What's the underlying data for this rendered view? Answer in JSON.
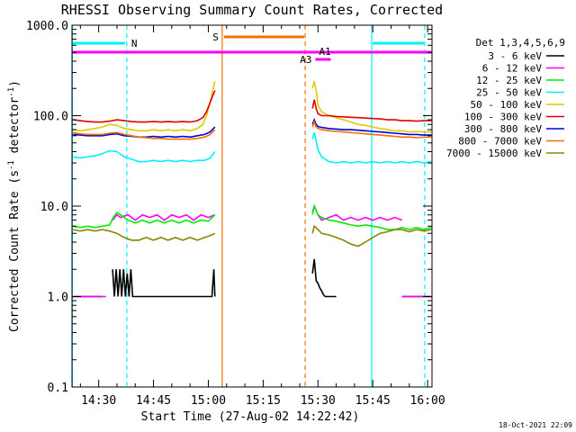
{
  "title": "RHESSI Observing Summary Count Rates, Corrected",
  "footer_date": "18-Oct-2021 22:09",
  "chart_data": {
    "type": "line",
    "title": "RHESSI Observing Summary Count Rates, Corrected",
    "xlabel": "Start Time (27-Aug-02 14:22:42)",
    "ylabel_main": "Corrected Count Rate (s",
    "ylabel_sup": "-1",
    "ylabel_mid": " detector",
    "ylabel_sup2": "-1",
    "ylabel_end": ")",
    "yscale": "log",
    "ylim": [
      0.1,
      1000
    ],
    "xlim_minutes": [
      22.7,
      121.2
    ],
    "y_ticks": [
      {
        "value": 0.1,
        "label": "0.1"
      },
      {
        "value": 1,
        "label": "1.0"
      },
      {
        "value": 10,
        "label": "10.0"
      },
      {
        "value": 100,
        "label": "100.0"
      },
      {
        "value": 1000,
        "label": "1000.0"
      }
    ],
    "x_ticks": [
      {
        "minute": 30,
        "label": "14:30"
      },
      {
        "minute": 45,
        "label": "14:45"
      },
      {
        "minute": 60,
        "label": "15:00"
      },
      {
        "minute": 75,
        "label": "15:15"
      },
      {
        "minute": 90,
        "label": "15:30"
      },
      {
        "minute": 105,
        "label": "15:45"
      },
      {
        "minute": 120,
        "label": "16:00"
      }
    ],
    "legend": {
      "title": "Det 1,3,4,5,6,9",
      "position": "right",
      "entries": [
        {
          "label": "3 - 6 keV",
          "color": "#000000"
        },
        {
          "label": "6 - 12 keV",
          "color": "#ff00ff"
        },
        {
          "label": "12 - 25 keV",
          "color": "#00ee00"
        },
        {
          "label": "25 - 50 keV",
          "color": "#00f0ff"
        },
        {
          "label": "50 - 100 keV",
          "color": "#e6c800"
        },
        {
          "label": "100 - 300 keV",
          "color": "#e00000"
        },
        {
          "label": "300 - 800 keV",
          "color": "#0000e0"
        },
        {
          "label": "800 - 7000 keV",
          "color": "#f07000"
        },
        {
          "label": "7000 - 15000 keV",
          "color": "#888800"
        }
      ]
    },
    "series": [
      {
        "name": "3 - 6 keV",
        "color": "#000000",
        "segments": [
          {
            "x": [
              23,
              31
            ],
            "y": [
              1,
              1
            ]
          },
          {
            "x": [
              33.8,
              34.3,
              34.8,
              35.3,
              35.8,
              36.3,
              36.8,
              37.3,
              37.8,
              38.3,
              38.8,
              39.3,
              40,
              41,
              42,
              43,
              44,
              45,
              46,
              47,
              48,
              49,
              50,
              51,
              52,
              53,
              54,
              55,
              56,
              57,
              58,
              59,
              60,
              61,
              61.5,
              61.8
            ],
            "y": [
              2,
              1,
              2,
              1,
              2,
              1,
              2,
              1,
              1.8,
              1,
              2,
              1,
              1,
              1,
              1,
              1,
              1,
              1,
              1,
              1,
              1,
              1,
              1,
              1,
              1,
              1,
              1,
              1,
              1,
              1,
              1,
              1,
              1,
              1,
              2,
              1
            ]
          },
          {
            "x": [
              88.5,
              89,
              89.5,
              90,
              90.5,
              91,
              91.5,
              92,
              93,
              95
            ],
            "y": [
              1.8,
              2.6,
              1.5,
              1.4,
              1.25,
              1.15,
              1.05,
              1,
              1,
              1
            ]
          },
          {
            "x": [
              113,
              121
            ],
            "y": [
              1,
              1
            ]
          }
        ]
      },
      {
        "name": "6 - 12 keV",
        "color": "#ff00ff",
        "segments": [
          {
            "x": [
              23,
              32
            ],
            "y": [
              1,
              1
            ]
          },
          {
            "x": [
              33.8,
              35,
              36,
              38,
              40,
              42,
              44,
              46,
              48,
              50,
              52,
              54,
              56,
              58,
              60,
              61.8
            ],
            "y": [
              7,
              8,
              7.5,
              8,
              7,
              8,
              7.5,
              8,
              7,
              8,
              7.5,
              8,
              7,
              8,
              7.5,
              8
            ]
          },
          {
            "x": [
              88.5,
              89,
              90,
              91,
              93,
              95,
              97,
              99,
              101,
              103,
              105,
              107,
              109,
              111,
              113
            ],
            "y": [
              8.5,
              10,
              8,
              7,
              7.5,
              8,
              7,
              7.5,
              7,
              7.5,
              7,
              7.5,
              7,
              7.5,
              7
            ]
          },
          {
            "x": [
              113,
              121
            ],
            "y": [
              1,
              1
            ]
          }
        ]
      },
      {
        "name": "12 - 25 keV",
        "color": "#00ee00",
        "segments": [
          {
            "x": [
              23,
              25,
              27,
              29,
              31,
              33,
              34,
              35,
              36,
              38,
              40,
              42,
              44,
              46,
              48,
              50,
              52,
              54,
              56,
              58,
              60,
              61.8
            ],
            "y": [
              6,
              5.8,
              6,
              5.8,
              6,
              6.2,
              7.5,
              8.5,
              8,
              7,
              6.5,
              7,
              6.5,
              7,
              6.5,
              7,
              6.5,
              7,
              6.5,
              7,
              6.8,
              8
            ]
          },
          {
            "x": [
              88.5,
              89,
              90,
              91,
              93,
              95,
              97,
              99,
              101,
              103,
              105,
              107,
              109,
              111,
              113,
              115,
              117,
              119,
              121
            ],
            "y": [
              8,
              10,
              8,
              7.5,
              7,
              6.8,
              6.5,
              6.2,
              6,
              6.2,
              6,
              5.8,
              5.5,
              5.5,
              5.8,
              5.5,
              5.8,
              5.5,
              5.8
            ]
          }
        ]
      },
      {
        "name": "25 - 50 keV",
        "color": "#00f0ff",
        "segments": [
          {
            "x": [
              23,
              25,
              27,
              29,
              31,
              33,
              35,
              37,
              39,
              41,
              43,
              45,
              47,
              49,
              51,
              53,
              55,
              57,
              59,
              60.5,
              61.8
            ],
            "y": [
              35,
              34,
              35,
              36,
              38,
              41,
              40,
              35,
              33,
              31,
              31,
              32,
              31,
              32,
              31,
              32,
              31,
              32,
              32,
              34,
              40
            ]
          },
          {
            "x": [
              88.5,
              89,
              90,
              91,
              93,
              95,
              97,
              99,
              101,
              103,
              105,
              107,
              109,
              111,
              113,
              115,
              117,
              119,
              121
            ],
            "y": [
              55,
              65,
              42,
              35,
              31,
              30,
              31,
              30,
              31,
              30,
              31,
              30,
              31,
              30,
              31,
              30,
              31,
              30,
              31
            ]
          }
        ]
      },
      {
        "name": "50 - 100 keV",
        "color": "#e6c800",
        "segments": [
          {
            "x": [
              23,
              25,
              27,
              29,
              31,
              33,
              35,
              37,
              39,
              41,
              43,
              45,
              47,
              49,
              51,
              53,
              55,
              57,
              58.5,
              59.5,
              60.5,
              61.3,
              61.8
            ],
            "y": [
              70,
              68,
              70,
              72,
              75,
              80,
              78,
              72,
              70,
              68,
              68,
              70,
              68,
              70,
              68,
              70,
              68,
              72,
              80,
              100,
              140,
              200,
              240
            ]
          },
          {
            "x": [
              88.5,
              89,
              89.5,
              90,
              91,
              93,
              95,
              97,
              99,
              101,
              103,
              105,
              107,
              109,
              111,
              113,
              115,
              117,
              119,
              121
            ],
            "y": [
              200,
              240,
              190,
              130,
              110,
              100,
              95,
              90,
              85,
              80,
              78,
              75,
              72,
              70,
              68,
              68,
              66,
              67,
              66,
              66
            ]
          }
        ]
      },
      {
        "name": "100 - 300 keV",
        "color": "#e00000",
        "segments": [
          {
            "x": [
              23,
              25,
              27,
              29,
              31,
              33,
              35,
              37,
              39,
              41,
              43,
              45,
              47,
              49,
              51,
              53,
              55,
              57,
              58.5,
              59.5,
              60.5,
              61.3,
              61.8
            ],
            "y": [
              90,
              88,
              86,
              85,
              85,
              87,
              90,
              88,
              86,
              85,
              85,
              86,
              85,
              86,
              85,
              86,
              85,
              88,
              95,
              110,
              140,
              170,
              190
            ]
          },
          {
            "x": [
              88.5,
              89,
              89.5,
              90,
              91,
              93,
              95,
              97,
              99,
              101,
              103,
              105,
              107,
              109,
              111,
              113,
              115,
              117,
              119,
              121
            ],
            "y": [
              120,
              150,
              120,
              105,
              100,
              100,
              98,
              97,
              96,
              95,
              94,
              93,
              92,
              90,
              90,
              88,
              88,
              87,
              88,
              88
            ]
          }
        ]
      },
      {
        "name": "300 - 800 keV",
        "color": "#0000e0",
        "segments": [
          {
            "x": [
              23,
              25,
              27,
              29,
              31,
              33,
              35,
              37,
              39,
              41,
              43,
              45,
              47,
              49,
              51,
              53,
              55,
              57,
              59,
              60.5,
              61.8
            ],
            "y": [
              62,
              61,
              60,
              60,
              60,
              62,
              63,
              60,
              59,
              58,
              58,
              59,
              58,
              59,
              58,
              59,
              58,
              60,
              62,
              66,
              75
            ]
          },
          {
            "x": [
              88.5,
              89,
              89.5,
              90,
              91,
              93,
              95,
              97,
              99,
              101,
              103,
              105,
              107,
              109,
              111,
              113,
              115,
              117,
              119,
              121
            ],
            "y": [
              80,
              90,
              80,
              76,
              74,
              72,
              71,
              70,
              70,
              69,
              68,
              67,
              66,
              65,
              64,
              63,
              62,
              62,
              61,
              61
            ]
          }
        ]
      },
      {
        "name": "800 - 7000 keV",
        "color": "#f07000",
        "segments": [
          {
            "x": [
              23,
              25,
              27,
              29,
              31,
              33,
              35,
              37,
              39,
              41,
              43,
              45,
              47,
              49,
              51,
              53,
              55,
              57,
              59,
              60.5,
              61.8
            ],
            "y": [
              65,
              63,
              62,
              62,
              62,
              64,
              65,
              62,
              60,
              58,
              57,
              56,
              56,
              55,
              55,
              55,
              55,
              56,
              58,
              62,
              70
            ]
          },
          {
            "x": [
              88.5,
              89,
              89.5,
              90,
              91,
              93,
              95,
              97,
              99,
              101,
              103,
              105,
              107,
              109,
              111,
              113,
              115,
              117,
              119,
              121
            ],
            "y": [
              75,
              85,
              75,
              72,
              70,
              68,
              67,
              66,
              65,
              64,
              63,
              62,
              61,
              60,
              59,
              58,
              58,
              57,
              58,
              58
            ]
          }
        ]
      },
      {
        "name": "7000 - 15000 keV",
        "color": "#888800",
        "segments": [
          {
            "x": [
              23,
              25,
              27,
              29,
              31,
              33,
              35,
              37,
              39,
              41,
              43,
              45,
              47,
              49,
              51,
              53,
              55,
              57,
              59,
              61,
              61.8
            ],
            "y": [
              5.5,
              5.3,
              5.5,
              5.3,
              5.5,
              5.3,
              5,
              4.5,
              4.2,
              4.2,
              4.5,
              4.2,
              4.5,
              4.2,
              4.5,
              4.2,
              4.5,
              4.2,
              4.5,
              4.8,
              5
            ]
          },
          {
            "x": [
              88.5,
              89,
              90,
              91,
              93,
              95,
              97,
              99,
              101,
              103,
              105,
              107,
              109,
              111,
              113,
              115,
              117,
              119,
              121
            ],
            "y": [
              5,
              6,
              5.5,
              5,
              4.8,
              4.5,
              4.2,
              3.8,
              3.6,
              4,
              4.5,
              5,
              5.2,
              5.5,
              5.5,
              5.2,
              5.5,
              5.3,
              5.5
            ]
          }
        ]
      }
    ],
    "annotations": {
      "night": [
        {
          "start": 22.8,
          "end": 37.7,
          "label": "N",
          "color": "#00f0ff"
        },
        {
          "start": 104.7,
          "end": 119.2,
          "label": "",
          "color": "#00f0ff"
        }
      ],
      "saa": [
        {
          "start": 63.8,
          "end": 86.5,
          "label": "S",
          "color": "#f07000"
        }
      ],
      "flags_magenta": [
        {
          "start": 22.7,
          "end": 121.2,
          "label": ""
        },
        {
          "start": 89.3,
          "end": 93.5,
          "label": "A1"
        },
        {
          "start": 89.3,
          "end": 93.5,
          "label": "A3"
        }
      ]
    }
  }
}
